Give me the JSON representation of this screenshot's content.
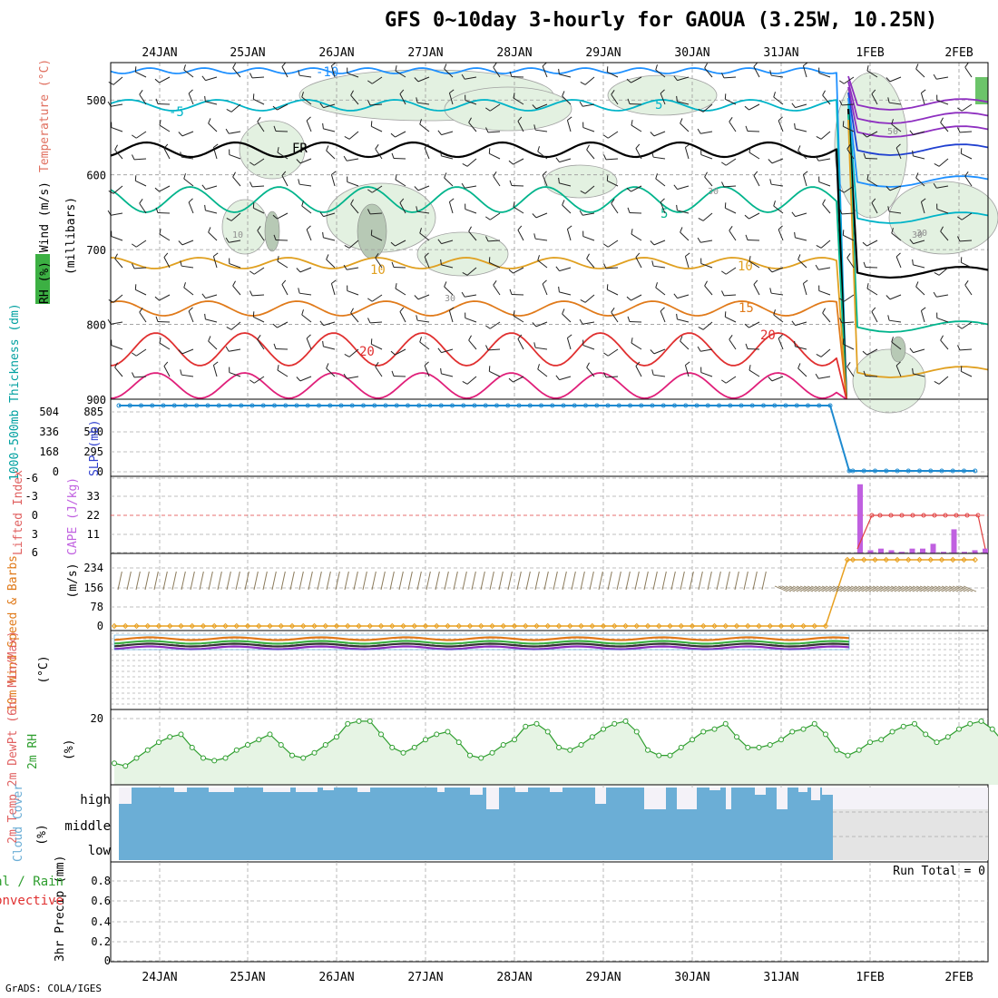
{
  "title": "GFS 0~10day 3-hourly for GAOUA (3.25W, 10.25N)",
  "credit": "GrADS: COLA/IGES",
  "colors": {
    "rh_green": "#3cb043",
    "temp_orange": "#e07a1a",
    "wind_red": "#c02020",
    "thickness_cyan": "#00a0a0",
    "slp_blue": "#3040d0",
    "cape_purple": "#c060e0",
    "li_red": "#e04040",
    "barb_brown": "#8a7a5a",
    "speed_orange": "#e8a020",
    "cloud_blue": "#6baed6",
    "cloud_empty": "#f4f2f8",
    "rh2m_green": "#2e9e2e"
  },
  "chart_data": [
    {
      "panel": "upper-air",
      "type": "heatmap",
      "x_tick_labels": [
        "24JAN",
        "25JAN",
        "26JAN",
        "27JAN",
        "28JAN",
        "29JAN",
        "30JAN",
        "31JAN",
        "1FEB",
        "2FEB"
      ],
      "y_ticks": [
        500,
        600,
        700,
        800,
        900
      ],
      "ylabel_parts": [
        "Wind (m/s)",
        "Temperature (°C)",
        "RH (%)"
      ],
      "ylabel_units": "(millibars)",
      "ylim": [
        900,
        450
      ],
      "temperature_contour_labels": [
        {
          "label": "-10",
          "color": "#1e90ff"
        },
        {
          "label": "-5",
          "color": "#00b4c8"
        },
        {
          "label": "5",
          "color": "#00b4c8"
        },
        {
          "label": "FR",
          "color": "#000000"
        },
        {
          "label": "5",
          "color": "#00b48c"
        },
        {
          "label": "10",
          "color": "#e0a020"
        },
        {
          "label": "10",
          "color": "#e0a020"
        },
        {
          "label": "15",
          "color": "#e07a1a"
        },
        {
          "label": "20",
          "color": "#e03030"
        },
        {
          "label": "20",
          "color": "#e03030"
        }
      ],
      "rh_contour_labels": [
        "10",
        "30",
        "30",
        "30",
        "50",
        "30"
      ]
    },
    {
      "panel": "thickness-slp",
      "type": "line",
      "ylabel": "1000-500mb Thickness (dm)",
      "ylabel2": "SLP (mb)",
      "left_ticks": [
        "504",
        "336",
        "168",
        "0"
      ],
      "right_ticks": [
        "885",
        "590",
        "295",
        "0"
      ],
      "series": [
        {
          "values": [
            885,
            885,
            885,
            885,
            885,
            885,
            885,
            885,
            885,
            0,
            0
          ]
        }
      ]
    },
    {
      "panel": "stability",
      "type": "bar",
      "ylabel": "Lifted Index",
      "ylabel2": "CAPE (J/kg)",
      "left_ticks": [
        "-6",
        "-3",
        "0",
        "3",
        "6"
      ],
      "right_ticks": [
        "33",
        "22",
        "11"
      ],
      "cape_bars": [
        43,
        2,
        3,
        2,
        1,
        3,
        3,
        6,
        1,
        15,
        1,
        2,
        3
      ],
      "lifted_index": [
        0,
        0,
        0,
        0,
        0,
        0,
        0,
        0,
        0,
        0,
        0,
        0,
        0,
        0
      ]
    },
    {
      "panel": "10m-wind",
      "type": "line",
      "ylabel": "10m Wind Speed & Barbs",
      "yunits": "(m/s)",
      "ticks": [
        "234",
        "156",
        "78",
        "0"
      ],
      "speed_before_1FEB": 0,
      "speed_after_1FEB": 243
    },
    {
      "panel": "2m-temp",
      "type": "line",
      "ylabel": "2m Temp 2m DewPt (6hr Min/Max)",
      "yunits": "(°C)"
    },
    {
      "panel": "2m-rh",
      "type": "area",
      "ylabel": "2m RH",
      "yunits": "(%)",
      "ticks": [
        "20"
      ],
      "values": [
        3,
        2,
        5,
        8,
        11,
        13,
        14,
        9,
        5,
        4,
        5,
        8,
        10,
        12,
        14,
        10,
        6,
        5,
        7,
        10,
        13,
        18,
        19,
        19,
        14,
        9,
        7,
        9,
        12,
        14,
        15,
        11,
        6,
        5,
        7,
        10,
        12,
        17,
        18,
        15,
        9,
        8,
        10,
        13,
        16,
        18,
        19,
        15,
        8,
        6,
        6,
        9,
        12,
        15,
        16,
        18,
        13,
        9,
        9,
        10,
        12,
        15,
        16,
        18,
        14,
        8,
        6,
        8,
        11,
        12,
        15,
        17,
        18,
        14,
        11,
        13,
        16,
        18,
        19,
        16,
        11,
        10,
        11,
        14,
        16,
        20
      ]
    },
    {
      "panel": "cloud-cover",
      "type": "area",
      "ylabel": "Cloud Cover",
      "yunits": "(%)",
      "levels": [
        "high",
        "middle",
        "low"
      ],
      "high_gaps": [
        [
          131,
          145,
          18
        ],
        [
          192,
          206,
          5
        ],
        [
          230,
          258,
          5
        ],
        [
          290,
          320,
          5
        ],
        [
          326,
          350,
          5
        ],
        [
          356,
          368,
          3
        ],
        [
          394,
          408,
          5
        ],
        [
          482,
          490,
          5
        ],
        [
          518,
          532,
          8
        ],
        [
          536,
          550,
          24
        ],
        [
          568,
          582,
          5
        ],
        [
          606,
          620,
          5
        ],
        [
          656,
          668,
          18
        ],
        [
          710,
          734,
          24
        ],
        [
          746,
          768,
          24
        ],
        [
          782,
          794,
          3
        ],
        [
          800,
          806,
          24
        ],
        [
          832,
          844,
          8
        ],
        [
          856,
          868,
          24
        ],
        [
          880,
          890,
          5
        ],
        [
          894,
          904,
          14
        ],
        [
          906,
          918,
          8
        ]
      ]
    },
    {
      "panel": "precip",
      "type": "bar",
      "ylabel": "3hr Precip (mm)",
      "ylabel_left": [
        "Total / Rain",
        "Convective"
      ],
      "ticks": [
        "0.8",
        "0.6",
        "0.4",
        "0.2",
        "0"
      ],
      "ylim": [
        0,
        0.9
      ],
      "run_total": "Run Total = 0",
      "values": []
    }
  ]
}
